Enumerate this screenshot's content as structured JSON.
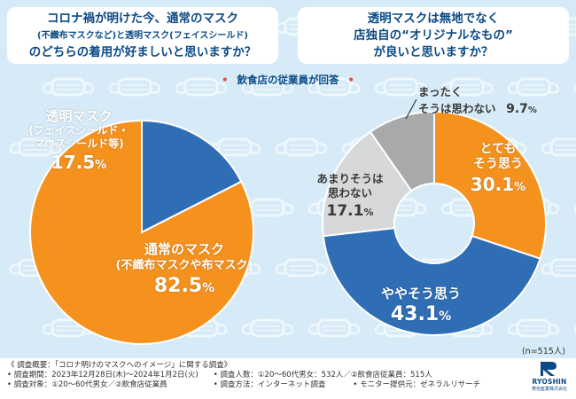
{
  "questions": {
    "q1": [
      "コロナ禍が明けた今、通常のマスク",
      "(不織布マスクなど)と透明マスク(フェイスシールド)",
      "のどちらの着用が好ましいと思いますか？"
    ],
    "q2": [
      "透明マスクは無地でなく",
      "店独自の“オリジナルなもの”",
      "が良いと思いますか？"
    ]
  },
  "subtitle": "飲食店の従業員が回答",
  "colors": {
    "blue": "#2f6eb5",
    "orange": "#f5921e",
    "gray": "#a7a9ab",
    "lightgray": "#d7d8d9",
    "navy": "#0b4a86"
  },
  "chart_data": [
    {
      "type": "pie",
      "slices": [
        {
          "label_lines": [
            "透明マスク",
            "(フェイスシールド・",
            "マウスシールド等)"
          ],
          "value": 17.5,
          "color": "#2f6eb5"
        },
        {
          "label_lines": [
            "通常のマスク",
            "(不織布マスクや布マスク)"
          ],
          "value": 82.5,
          "color": "#f5921e"
        }
      ],
      "unit": "%"
    },
    {
      "type": "pie",
      "donut": true,
      "slices": [
        {
          "label_lines": [
            "とても",
            "そう思う"
          ],
          "value": 30.1,
          "color": "#f5921e"
        },
        {
          "label_lines": [
            "ややそう思う"
          ],
          "value": 43.1,
          "color": "#2f6eb5"
        },
        {
          "label_lines": [
            "あまりそうは",
            "思わない"
          ],
          "value": 17.1,
          "color": "#d7d8d9"
        },
        {
          "label_lines": [
            "まったく",
            "そうは思わない"
          ],
          "value": 9.7,
          "color": "#a7a9ab"
        }
      ],
      "unit": "%"
    }
  ],
  "n_label": "(n=515人)",
  "footer": {
    "title": "《 調査概要：「コロナ明けのマスクへのイメージ」に関する調査》",
    "period": "• 調査期間：2023年12月28日(木)〜2024年1月2日(火)",
    "subjects": "• 調査対象：①20〜60代男女／②飲食店従業員",
    "count": "• 調査人数：①20〜60代男女：532人／②飲食店従業員：515人",
    "method": "• 調査方法：インターネット調査",
    "provider": "• モニター提供元：ゼネラルリサーチ"
  },
  "logo": {
    "name": "RYOSHIN",
    "sub": "菱信産業株式会社"
  }
}
